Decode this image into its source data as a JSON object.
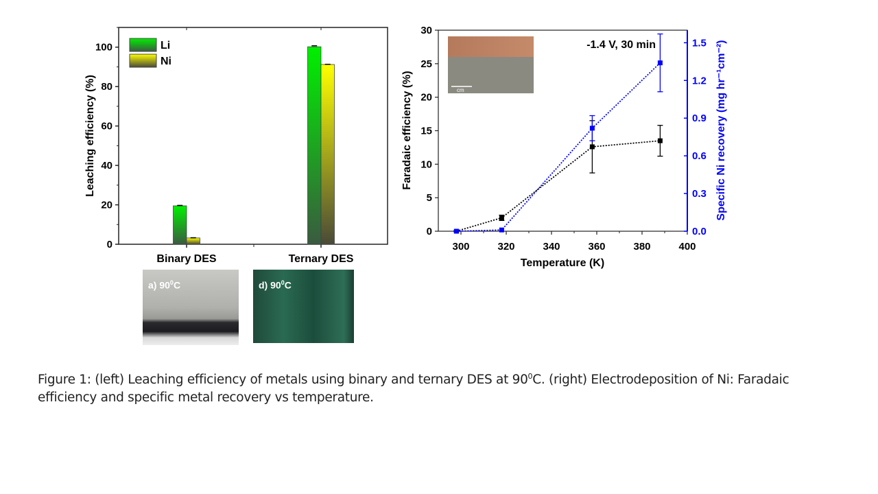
{
  "chart_data": [
    {
      "type": "bar",
      "title": "",
      "xlabel": "",
      "ylabel": "Leaching efficiency (%)",
      "ylim": [
        0,
        110
      ],
      "yticks": [
        0,
        20,
        40,
        60,
        80,
        100
      ],
      "categories": [
        "Binary DES",
        "Ternary DES"
      ],
      "series": [
        {
          "name": "Li",
          "values": [
            19.5,
            100.2
          ],
          "errors": [
            0.2,
            0.5
          ],
          "color": "#00e000"
        },
        {
          "name": "Ni",
          "values": [
            3.2,
            91.2
          ],
          "errors": [
            0.1,
            0.1
          ],
          "color": "#f0f000"
        }
      ],
      "legend": "top-left"
    },
    {
      "type": "line",
      "title": "",
      "annotation": "-1.4 V, 30 min",
      "xlabel": "Temperature (K)",
      "ylabel": "Faradaic efficiency (%)",
      "y2label": "Specific Ni recovery (mg hr⁻¹cm⁻²)",
      "xlim": [
        290,
        400
      ],
      "ylim": [
        0,
        30
      ],
      "y2lim": [
        0,
        1.6
      ],
      "xticks": [
        300,
        320,
        340,
        360,
        380,
        400
      ],
      "yticks": [
        0,
        5,
        10,
        15,
        20,
        25,
        30
      ],
      "y2ticks": [
        "0.0",
        "0.3",
        "0.6",
        "0.9",
        "1.2",
        "1.5"
      ],
      "series": [
        {
          "name": "Faradaic efficiency",
          "axis": "left",
          "color": "#000000",
          "x": [
            298,
            318,
            358,
            388
          ],
          "y": [
            0,
            2.0,
            12.6,
            13.5
          ],
          "errors": [
            0.1,
            0.4,
            3.9,
            2.3
          ]
        },
        {
          "name": "Specific Ni recovery",
          "axis": "right",
          "color": "#0000ff",
          "x": [
            298,
            318,
            358,
            388
          ],
          "y": [
            0,
            0.01,
            0.82,
            1.34
          ],
          "errors": [
            0,
            0,
            0.1,
            0.23
          ]
        }
      ],
      "inset_scale_label": "cm"
    }
  ],
  "photos": {
    "a_label": "a) 90",
    "a_sup": "0",
    "a_unit": "C",
    "d_label": "d) 90",
    "d_sup": "0",
    "d_unit": "C"
  },
  "caption": {
    "part1": "Figure 1: (left) Leaching efficiency of metals using binary and ternary DES at 90",
    "sup": "0",
    "part2": "C. (right) Electrodeposition of Ni: Faradaic efficiency and specific metal recovery vs temperature."
  }
}
